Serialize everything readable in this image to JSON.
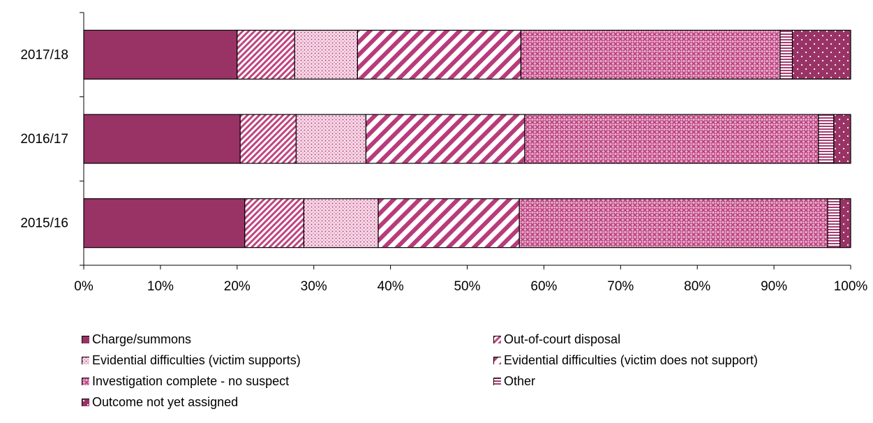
{
  "chart_data": {
    "type": "bar",
    "orientation": "horizontal",
    "stacked": true,
    "percent": true,
    "categories": [
      "2017/18",
      "2016/17",
      "2015/16"
    ],
    "xlim": [
      0,
      100
    ],
    "xticks": [
      "0%",
      "10%",
      "20%",
      "30%",
      "40%",
      "50%",
      "60%",
      "70%",
      "80%",
      "90%",
      "100%"
    ],
    "grid": false,
    "legend_position": "bottom",
    "series": [
      {
        "name": "Charge/summons",
        "values": [
          20,
          20.4,
          21
        ],
        "color": "#993366",
        "pattern": "solid"
      },
      {
        "name": "Out-of-court disposal",
        "values": [
          7.5,
          7.3,
          7.7
        ],
        "color": "#c0447f",
        "pattern": "fine-diagonal"
      },
      {
        "name": "Evidential difficulties (victim supports)",
        "values": [
          8.2,
          9.1,
          9.7
        ],
        "color": "#d6649c",
        "pattern": "dots"
      },
      {
        "name": "Evidential difficulties (victim does not support)",
        "values": [
          21.3,
          20.7,
          18.4
        ],
        "color": "#b83b7b",
        "pattern": "wide-diagonal"
      },
      {
        "name": "Investigation complete - no suspect",
        "values": [
          33.8,
          38.3,
          40.2
        ],
        "color": "#c0558f",
        "pattern": "crosshatch"
      },
      {
        "name": "Other",
        "values": [
          1.6,
          2.0,
          1.6
        ],
        "color": "#a83b73",
        "pattern": "horizontal"
      },
      {
        "name": "Outcome not yet assigned",
        "values": [
          7.6,
          2.2,
          1.4
        ],
        "color": "#993366",
        "pattern": "sparse-dots"
      }
    ]
  }
}
